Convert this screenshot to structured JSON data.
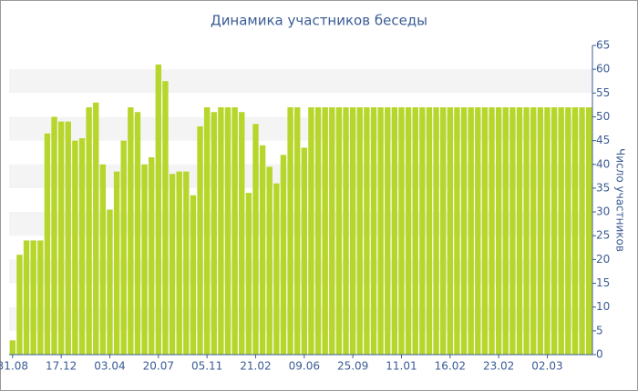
{
  "chart_data": {
    "type": "bar",
    "title": "Динамика участников беседы",
    "y_label": "Число участников",
    "categories": [
      "31.08",
      null,
      null,
      null,
      null,
      null,
      null,
      "17.12",
      null,
      null,
      null,
      null,
      null,
      null,
      "03.04",
      null,
      null,
      null,
      null,
      null,
      null,
      "20.07",
      null,
      null,
      null,
      null,
      null,
      null,
      "05.11",
      null,
      null,
      null,
      null,
      null,
      null,
      "21.02",
      null,
      null,
      null,
      null,
      null,
      null,
      "09.06",
      null,
      null,
      null,
      null,
      null,
      null,
      "25.09",
      null,
      null,
      null,
      null,
      null,
      null,
      "11.01",
      null,
      null,
      null,
      null,
      null,
      null,
      "16.02",
      null,
      null,
      null,
      null,
      null,
      null,
      "23.02",
      null,
      null,
      null,
      null,
      null,
      null,
      "02.03",
      null,
      null,
      null,
      null,
      null,
      null
    ],
    "values": [
      3,
      21,
      24,
      24,
      24,
      46.5,
      50,
      49,
      49,
      45,
      45.5,
      52,
      53,
      40,
      30.5,
      38.5,
      45,
      52,
      51,
      40,
      41.5,
      61,
      57.5,
      38,
      38.5,
      38.5,
      33.5,
      48,
      52,
      51,
      52,
      52,
      52,
      51,
      34,
      48.5,
      44,
      39.5,
      36,
      42,
      52,
      52,
      43.5,
      52,
      52,
      52,
      52,
      52,
      52,
      52,
      52,
      52,
      52,
      52,
      52,
      52,
      52,
      52,
      52,
      52,
      52,
      52,
      52,
      52,
      52,
      52,
      52,
      52,
      52,
      52,
      52,
      52,
      52,
      52,
      52,
      52,
      52,
      52,
      52,
      52,
      52,
      52,
      52,
      52
    ],
    "color": "#b7d62b",
    "ylim": [
      0,
      65
    ],
    "yticks": [
      0,
      5,
      10,
      15,
      20,
      25,
      30,
      35,
      40,
      45,
      50,
      55,
      60,
      65
    ],
    "grid": "bands"
  }
}
